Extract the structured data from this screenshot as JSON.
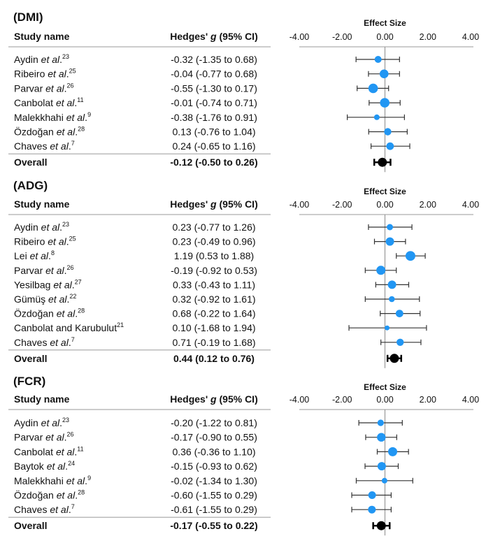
{
  "colors": {
    "study_marker": "#2196F3",
    "overall_marker": "#000000",
    "ci_line": "#333333",
    "rule": "#bbbbbb",
    "zero_line": "#999999"
  },
  "chart_data": [
    {
      "type": "forest",
      "title": "(DMI)",
      "axis_title": "Effect Size",
      "xlim": [
        -4,
        4
      ],
      "ticks": [
        "-4.00",
        "-2.00",
        "0.00",
        "2.00",
        "4.00"
      ],
      "col_study": "Study name",
      "col_effect": "Hedges' g (95% CI)",
      "studies": [
        {
          "name": "Aydin",
          "etal": "et al",
          "ref": "23",
          "g": -0.32,
          "lo": -1.35,
          "hi": 0.68,
          "label": "-0.32 (-1.35 to 0.68)",
          "weight": 5
        },
        {
          "name": "Ribeiro",
          "etal": "et al",
          "ref": "25",
          "g": -0.04,
          "lo": -0.77,
          "hi": 0.68,
          "label": "-0.04 (-0.77 to 0.68)",
          "weight": 6.3
        },
        {
          "name": "Parvar",
          "etal": "et al",
          "ref": "26",
          "g": -0.55,
          "lo": -1.3,
          "hi": 0.17,
          "label": "-0.55 (-1.30 to 0.17)",
          "weight": 6.8
        },
        {
          "name": "Canbolat",
          "etal": "et al",
          "ref": "11",
          "g": -0.01,
          "lo": -0.74,
          "hi": 0.71,
          "label": "-0.01 (-0.74 to 0.71)",
          "weight": 6.8
        },
        {
          "name": "Malekkhahi",
          "etal": "et al",
          "ref": "9",
          "g": -0.38,
          "lo": -1.76,
          "hi": 0.91,
          "label": "-0.38 (-1.76 to 0.91)",
          "weight": 4
        },
        {
          "name": "Özdoğan",
          "etal": "et al",
          "ref": "28",
          "g": 0.13,
          "lo": -0.76,
          "hi": 1.04,
          "label": "0.13 (-0.76 to 1.04)",
          "weight": 5.2
        },
        {
          "name": "Chaves",
          "etal": "et al",
          "ref": "7",
          "g": 0.24,
          "lo": -0.65,
          "hi": 1.16,
          "label": "0.24 (-0.65 to 1.16)",
          "weight": 5.4
        }
      ],
      "overall": {
        "name": "Overall",
        "g": -0.12,
        "lo": -0.5,
        "hi": 0.26,
        "label": "-0.12 (-0.50 to 0.26)"
      }
    },
    {
      "type": "forest",
      "title": "(ADG)",
      "axis_title": "Effect Size",
      "xlim": [
        -4,
        4
      ],
      "ticks": [
        "-4.00",
        "-2.00",
        "0.00",
        "2.00",
        "4.00"
      ],
      "col_study": "Study name",
      "col_effect": "Hedges' g (95% CI)",
      "studies": [
        {
          "name": "Aydin",
          "etal": "et al",
          "ref": "23",
          "g": 0.23,
          "lo": -0.77,
          "hi": 1.26,
          "label": "0.23 (-0.77 to 1.26)",
          "weight": 4.5
        },
        {
          "name": "Ribeiro",
          "etal": "et al",
          "ref": "25",
          "g": 0.23,
          "lo": -0.49,
          "hi": 0.96,
          "label": "0.23 (-0.49 to 0.96)",
          "weight": 6
        },
        {
          "name": "Lei",
          "etal": "et al",
          "ref": "8",
          "g": 1.19,
          "lo": 0.53,
          "hi": 1.88,
          "label": "1.19 (0.53 to 1.88)",
          "weight": 7
        },
        {
          "name": "Parvar",
          "etal": "et al",
          "ref": "26",
          "g": -0.19,
          "lo": -0.92,
          "hi": 0.53,
          "label": "-0.19 (-0.92 to 0.53)",
          "weight": 6.5
        },
        {
          "name": "Yesilbag",
          "etal": "et al",
          "ref": "27",
          "g": 0.33,
          "lo": -0.43,
          "hi": 1.11,
          "label": "0.33 (-0.43 to 1.11)",
          "weight": 6
        },
        {
          "name": "Gümüş",
          "etal": "et al",
          "ref": "22",
          "g": 0.32,
          "lo": -0.92,
          "hi": 1.61,
          "label": "0.32 (-0.92 to 1.61)",
          "weight": 4.3
        },
        {
          "name": "Özdoğan",
          "etal": "et al",
          "ref": "28",
          "g": 0.68,
          "lo": -0.22,
          "hi": 1.64,
          "label": "0.68 (-0.22 to 1.64)",
          "weight": 5.4
        },
        {
          "name": "Canbolat and Karubulut",
          "etal": "",
          "ref": "21",
          "g": 0.1,
          "lo": -1.68,
          "hi": 1.94,
          "label": "0.10 (-1.68 to 1.94)",
          "weight": 3.5
        },
        {
          "name": "Chaves",
          "etal": "et al",
          "ref": "7",
          "g": 0.71,
          "lo": -0.19,
          "hi": 1.68,
          "label": "0.71 (-0.19 to 1.68)",
          "weight": 5.2
        }
      ],
      "overall": {
        "name": "Overall",
        "g": 0.44,
        "lo": 0.12,
        "hi": 0.76,
        "label": "0.44 (0.12 to 0.76)"
      }
    },
    {
      "type": "forest",
      "title": "(FCR)",
      "axis_title": "Effect Size",
      "xlim": [
        -4,
        4
      ],
      "ticks": [
        "-4.00",
        "-2.00",
        "0.00",
        "2.00",
        "4.00"
      ],
      "col_study": "Study name",
      "col_effect": "Hedges' g (95% CI)",
      "studies": [
        {
          "name": "Aydin",
          "etal": "et al",
          "ref": "23",
          "g": -0.2,
          "lo": -1.22,
          "hi": 0.81,
          "label": "-0.20 (-1.22 to 0.81)",
          "weight": 4.6
        },
        {
          "name": "Parvar",
          "etal": "et al",
          "ref": "26",
          "g": -0.17,
          "lo": -0.9,
          "hi": 0.55,
          "label": "-0.17 (-0.90 to 0.55)",
          "weight": 6.2
        },
        {
          "name": "Canbolat",
          "etal": "et al",
          "ref": "11",
          "g": 0.36,
          "lo": -0.36,
          "hi": 1.1,
          "label": "0.36 (-0.36 to 1.10)",
          "weight": 6.5
        },
        {
          "name": "Baytok",
          "etal": "et al",
          "ref": "24",
          "g": -0.15,
          "lo": -0.93,
          "hi": 0.62,
          "label": "-0.15 (-0.93 to 0.62)",
          "weight": 6
        },
        {
          "name": "Malekkhahi",
          "etal": "et al",
          "ref": "9",
          "g": -0.02,
          "lo": -1.34,
          "hi": 1.3,
          "label": "-0.02 (-1.34 to 1.30)",
          "weight": 4
        },
        {
          "name": "Özdoğan",
          "etal": "et al",
          "ref": "28",
          "g": -0.6,
          "lo": -1.55,
          "hi": 0.29,
          "label": "-0.60 (-1.55 to 0.29)",
          "weight": 5.5
        },
        {
          "name": "Chaves",
          "etal": "et al",
          "ref": "7",
          "g": -0.61,
          "lo": -1.55,
          "hi": 0.29,
          "label": "-0.61 (-1.55 to 0.29)",
          "weight": 5.5
        }
      ],
      "overall": {
        "name": "Overall",
        "g": -0.17,
        "lo": -0.55,
        "hi": 0.22,
        "label": "-0.17 (-0.55 to 0.22)"
      }
    }
  ]
}
